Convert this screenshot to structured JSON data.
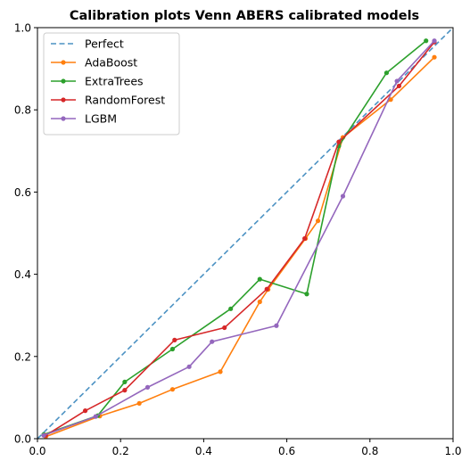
{
  "chart_data": {
    "type": "line",
    "title": "Calibration plots Venn ABERS calibrated models",
    "xlabel": "",
    "ylabel": "",
    "xlim": [
      0.0,
      1.0
    ],
    "ylim": [
      0.0,
      1.0
    ],
    "xticks": [
      "0.0",
      "0.2",
      "0.4",
      "0.6",
      "0.8",
      "1.0"
    ],
    "yticks": [
      "0.0",
      "0.2",
      "0.4",
      "0.6",
      "0.8",
      "1.0"
    ],
    "grid": false,
    "legend_position": "top-left",
    "series": [
      {
        "name": "Perfect",
        "color": "#1f77b4",
        "style": "dashed",
        "marker": false,
        "x": [
          0.0,
          1.0
        ],
        "y": [
          0.0,
          1.0
        ]
      },
      {
        "name": "AdaBoost",
        "color": "#ff7f0e",
        "style": "solid",
        "marker": true,
        "x": [
          0.02,
          0.15,
          0.245,
          0.325,
          0.44,
          0.535,
          0.555,
          0.645,
          0.675,
          0.735,
          0.85,
          0.955
        ],
        "y": [
          0.005,
          0.055,
          0.086,
          0.12,
          0.163,
          0.333,
          0.363,
          0.487,
          0.53,
          0.733,
          0.825,
          0.928
        ]
      },
      {
        "name": "ExtraTrees",
        "color": "#2ca02c",
        "style": "solid",
        "marker": true,
        "x": [
          0.015,
          0.145,
          0.21,
          0.325,
          0.465,
          0.535,
          0.648,
          0.725,
          0.84,
          0.935
        ],
        "y": [
          0.01,
          0.056,
          0.138,
          0.218,
          0.316,
          0.388,
          0.352,
          0.712,
          0.89,
          0.968
        ]
      },
      {
        "name": "RandomForest",
        "color": "#d62728",
        "style": "solid",
        "marker": true,
        "x": [
          0.02,
          0.115,
          0.21,
          0.33,
          0.45,
          0.552,
          0.643,
          0.725,
          0.87,
          0.955
        ],
        "y": [
          0.008,
          0.068,
          0.118,
          0.24,
          0.27,
          0.364,
          0.487,
          0.722,
          0.858,
          0.965
        ]
      },
      {
        "name": "LGBM",
        "color": "#9467bd",
        "style": "solid",
        "marker": true,
        "x": [
          0.015,
          0.14,
          0.265,
          0.365,
          0.42,
          0.575,
          0.735,
          0.865,
          0.955
        ],
        "y": [
          0.008,
          0.054,
          0.125,
          0.175,
          0.236,
          0.275,
          0.59,
          0.87,
          0.968
        ]
      }
    ]
  }
}
